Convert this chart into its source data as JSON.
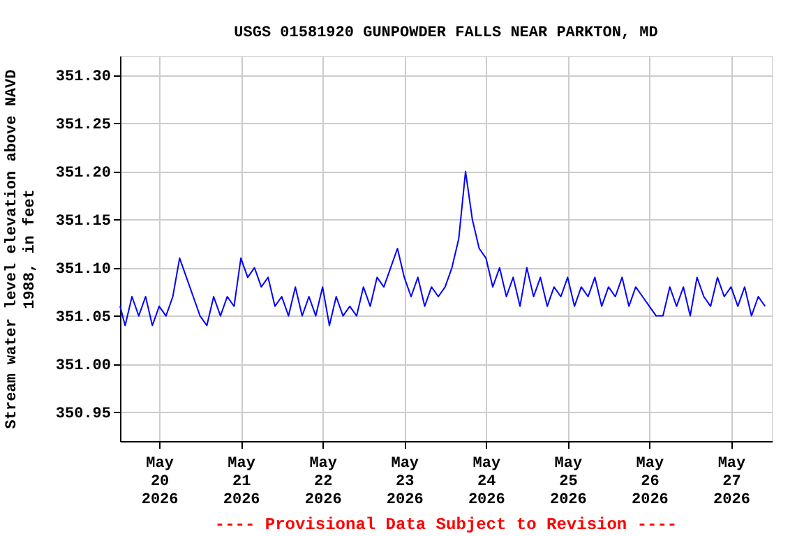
{
  "chart_data": {
    "type": "line",
    "title": "USGS 01581920 GUNPOWDER FALLS NEAR PARKTON, MD",
    "ylabel": "Stream water level elevation above NAVD 1988, in feet",
    "annotations": [
      "---- Provisional Data Subject to Revision ----"
    ],
    "xlim": [
      "2026-05-19T12:30",
      "2026-05-27T12:00"
    ],
    "xticks": [
      {
        "value": "2026-05-20",
        "label": "May 20 2026"
      },
      {
        "value": "2026-05-21",
        "label": "May 21 2026"
      },
      {
        "value": "2026-05-22",
        "label": "May 22 2026"
      },
      {
        "value": "2026-05-23",
        "label": "May 23 2026"
      },
      {
        "value": "2026-05-24",
        "label": "May 24 2026"
      },
      {
        "value": "2026-05-25",
        "label": "May 25 2026"
      },
      {
        "value": "2026-05-26",
        "label": "May 26 2026"
      },
      {
        "value": "2026-05-27",
        "label": "May 27 2026"
      }
    ],
    "ylim": [
      350.92,
      351.32
    ],
    "yticks": [
      {
        "value": 350.95,
        "label": "350.95"
      },
      {
        "value": 351.0,
        "label": "351.00"
      },
      {
        "value": 351.05,
        "label": "351.05"
      },
      {
        "value": 351.1,
        "label": "351.10"
      },
      {
        "value": 351.15,
        "label": "351.15"
      },
      {
        "value": 351.2,
        "label": "351.20"
      },
      {
        "value": 351.25,
        "label": "351.25"
      },
      {
        "value": 351.3,
        "label": "351.30"
      }
    ],
    "grid": true,
    "line_style": "solid",
    "marker": "none",
    "x": [
      "2026-05-19T12:30",
      "2026-05-19T14:00",
      "2026-05-19T16:00",
      "2026-05-19T18:00",
      "2026-05-19T20:00",
      "2026-05-19T22:00",
      "2026-05-20T00:00",
      "2026-05-20T02:00",
      "2026-05-20T04:00",
      "2026-05-20T06:00",
      "2026-05-20T08:00",
      "2026-05-20T10:00",
      "2026-05-20T12:00",
      "2026-05-20T14:00",
      "2026-05-20T16:00",
      "2026-05-20T18:00",
      "2026-05-20T20:00",
      "2026-05-20T22:00",
      "2026-05-21T00:00",
      "2026-05-21T02:00",
      "2026-05-21T04:00",
      "2026-05-21T06:00",
      "2026-05-21T08:00",
      "2026-05-21T10:00",
      "2026-05-21T12:00",
      "2026-05-21T14:00",
      "2026-05-21T16:00",
      "2026-05-21T18:00",
      "2026-05-21T20:00",
      "2026-05-21T22:00",
      "2026-05-22T00:00",
      "2026-05-22T02:00",
      "2026-05-22T04:00",
      "2026-05-22T06:00",
      "2026-05-22T08:00",
      "2026-05-22T10:00",
      "2026-05-22T12:00",
      "2026-05-22T14:00",
      "2026-05-22T16:00",
      "2026-05-22T18:00",
      "2026-05-22T20:00",
      "2026-05-22T22:00",
      "2026-05-23T00:00",
      "2026-05-23T02:00",
      "2026-05-23T04:00",
      "2026-05-23T06:00",
      "2026-05-23T08:00",
      "2026-05-23T10:00",
      "2026-05-23T12:00",
      "2026-05-23T14:00",
      "2026-05-23T16:00",
      "2026-05-23T18:00",
      "2026-05-23T20:00",
      "2026-05-23T22:00",
      "2026-05-24T00:00",
      "2026-05-24T02:00",
      "2026-05-24T04:00",
      "2026-05-24T06:00",
      "2026-05-24T08:00",
      "2026-05-24T10:00",
      "2026-05-24T12:00",
      "2026-05-24T14:00",
      "2026-05-24T16:00",
      "2026-05-24T18:00",
      "2026-05-24T20:00",
      "2026-05-24T22:00",
      "2026-05-25T00:00",
      "2026-05-25T02:00",
      "2026-05-25T04:00",
      "2026-05-25T06:00",
      "2026-05-25T08:00",
      "2026-05-25T10:00",
      "2026-05-25T12:00",
      "2026-05-25T14:00",
      "2026-05-25T16:00",
      "2026-05-25T18:00",
      "2026-05-25T20:00",
      "2026-05-25T22:00",
      "2026-05-26T00:00",
      "2026-05-26T02:00",
      "2026-05-26T04:00",
      "2026-05-26T06:00",
      "2026-05-26T08:00",
      "2026-05-26T10:00",
      "2026-05-26T12:00",
      "2026-05-26T14:00",
      "2026-05-26T16:00",
      "2026-05-26T18:00",
      "2026-05-26T20:00",
      "2026-05-26T22:00",
      "2026-05-27T00:00",
      "2026-05-27T02:00",
      "2026-05-27T04:00",
      "2026-05-27T06:00",
      "2026-05-27T08:00",
      "2026-05-27T10:00"
    ],
    "series": [
      {
        "color": "#0000ff",
        "values": [
          351.06,
          351.04,
          351.07,
          351.05,
          351.07,
          351.04,
          351.06,
          351.05,
          351.07,
          351.11,
          351.09,
          351.07,
          351.05,
          351.04,
          351.07,
          351.05,
          351.07,
          351.06,
          351.11,
          351.09,
          351.1,
          351.08,
          351.09,
          351.06,
          351.07,
          351.05,
          351.08,
          351.05,
          351.07,
          351.05,
          351.08,
          351.04,
          351.07,
          351.05,
          351.06,
          351.05,
          351.08,
          351.06,
          351.09,
          351.08,
          351.1,
          351.12,
          351.09,
          351.07,
          351.09,
          351.06,
          351.08,
          351.07,
          351.08,
          351.1,
          351.13,
          351.2,
          351.15,
          351.12,
          351.11,
          351.08,
          351.1,
          351.07,
          351.09,
          351.06,
          351.1,
          351.07,
          351.09,
          351.06,
          351.08,
          351.07,
          351.09,
          351.06,
          351.08,
          351.07,
          351.09,
          351.06,
          351.08,
          351.07,
          351.09,
          351.06,
          351.08,
          351.07,
          351.06,
          351.05,
          351.05,
          351.08,
          351.06,
          351.08,
          351.05,
          351.09,
          351.07,
          351.06,
          351.09,
          351.07,
          351.08,
          351.06,
          351.08,
          351.05,
          351.07,
          351.06
        ]
      }
    ]
  }
}
